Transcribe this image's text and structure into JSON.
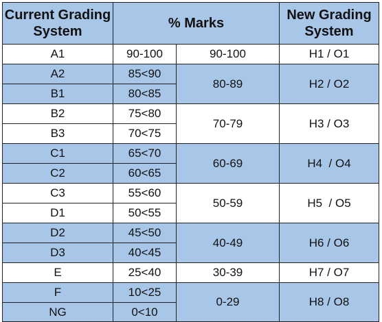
{
  "header": {
    "current": "Current Grading System",
    "marks": "% Marks",
    "new": "New Grading System"
  },
  "rows": [
    {
      "grade": "A1",
      "marks": "90-100"
    },
    {
      "grade": "A2",
      "marks": "85<90"
    },
    {
      "grade": "B1",
      "marks": "80<85"
    },
    {
      "grade": "B2",
      "marks": "75<80"
    },
    {
      "grade": "B3",
      "marks": "70<75"
    },
    {
      "grade": "C1",
      "marks": "65<70"
    },
    {
      "grade": "C2",
      "marks": "60<65"
    },
    {
      "grade": "C3",
      "marks": "55<60"
    },
    {
      "grade": "D1",
      "marks": "50<55"
    },
    {
      "grade": "D2",
      "marks": "45<50"
    },
    {
      "grade": "D3",
      "marks": "40<45"
    },
    {
      "grade": "E",
      "marks": "25<40"
    },
    {
      "grade": "F",
      "marks": "10<25"
    },
    {
      "grade": "NG",
      "marks": "0<10"
    }
  ],
  "groups": [
    {
      "range": "90-100",
      "new": "H1 / O1"
    },
    {
      "range": "80-89",
      "new": "H2 / O2"
    },
    {
      "range": "70-79",
      "new": "H3 / O3"
    },
    {
      "range": "60-69",
      "new": "H4  / O4"
    },
    {
      "range": "50-59",
      "new": "H5  / O5"
    },
    {
      "range": "40-49",
      "new": "H6 / O6"
    },
    {
      "range": "30-39",
      "new": "H7 / O7"
    },
    {
      "range": "0-29",
      "new": "H8 / O8"
    }
  ],
  "colors": {
    "band": "#a8c6e8",
    "border": "#1f1f1f"
  }
}
